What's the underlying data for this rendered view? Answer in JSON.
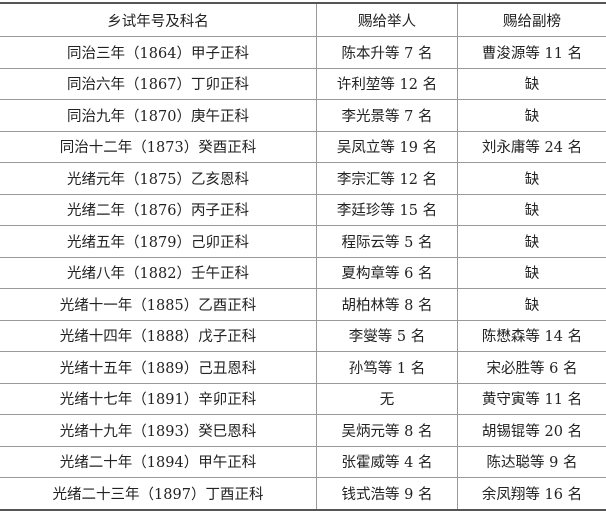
{
  "table": {
    "headers": [
      "乡试年号及科名",
      "赐给举人",
      "赐给副榜"
    ],
    "rows": [
      [
        "同治三年（1864）甲子正科",
        "陈本升等 7 名",
        "曹浚源等 11 名"
      ],
      [
        "同治六年（1867）丁卯正科",
        "许利堃等 12 名",
        "缺"
      ],
      [
        "同治九年（1870）庚午正科",
        "李光景等 7 名",
        "缺"
      ],
      [
        "同治十二年（1873）癸酉正科",
        "吴凤立等 19 名",
        "刘永庸等 24 名"
      ],
      [
        "光绪元年（1875）乙亥恩科",
        "李宗汇等 12 名",
        "缺"
      ],
      [
        "光绪二年（1876）丙子正科",
        "李廷珍等 15 名",
        "缺"
      ],
      [
        "光绪五年（1879）己卯正科",
        "程际云等 5 名",
        "缺"
      ],
      [
        "光绪八年（1882）壬午正科",
        "夏构章等 6 名",
        "缺"
      ],
      [
        "光绪十一年（1885）乙酉正科",
        "胡柏林等 8 名",
        "缺"
      ],
      [
        "光绪十四年（1888）戊子正科",
        "李燮等 5 名",
        "陈懋森等 14 名"
      ],
      [
        "光绪十五年（1889）己丑恩科",
        "孙笃等 1 名",
        "宋必胜等 6 名"
      ],
      [
        "光绪十七年（1891）辛卯正科",
        "无",
        "黄守寅等 11 名"
      ],
      [
        "光绪十九年（1893）癸巳恩科",
        "吴炳元等 8 名",
        "胡锡锟等 20 名"
      ],
      [
        "光绪二十年（1894）甲午正科",
        "张霍威等 4 名",
        "陈达聪等 9 名"
      ],
      [
        "光绪二十三年（1897）丁酉正科",
        "钱式浩等 9 名",
        "余凤翔等 16 名"
      ]
    ]
  }
}
